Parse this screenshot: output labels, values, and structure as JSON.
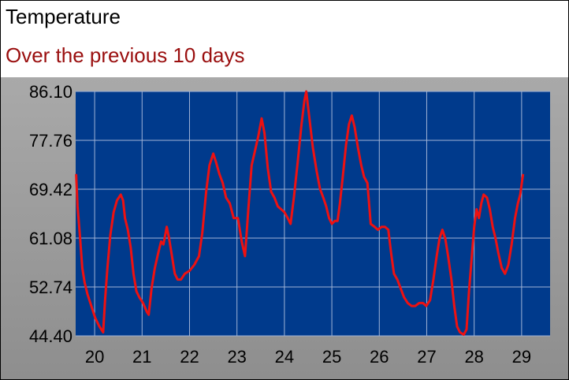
{
  "header": {
    "title": "Temperature",
    "subtitle": "Over the previous 10 days"
  },
  "colors": {
    "plot_background": "#003a8c",
    "grid": "#9fb3d6",
    "line": "#ee1111",
    "subtitle": "#9a0f0f",
    "panel": "#9a9a9a"
  },
  "chart_data": {
    "type": "line",
    "title": "Temperature",
    "subtitle": "Over the previous 10 days",
    "xlabel": "",
    "ylabel": "",
    "grid": true,
    "xlim": [
      19.6,
      29.6
    ],
    "ylim": [
      44.4,
      86.1
    ],
    "x_ticks": [
      20,
      21,
      22,
      23,
      24,
      25,
      26,
      27,
      28,
      29
    ],
    "x_tick_labels": [
      "20",
      "21",
      "22",
      "23",
      "24",
      "25",
      "26",
      "27",
      "28",
      "29"
    ],
    "y_ticks": [
      44.4,
      52.74,
      61.08,
      69.42,
      77.76,
      86.1
    ],
    "y_tick_labels": [
      "44.40",
      "52.74",
      "61.08",
      "69.42",
      "77.76",
      "86.10"
    ],
    "series": [
      {
        "values": [
          [
            19.61,
            72.0
          ],
          [
            19.64,
            66.5
          ],
          [
            19.69,
            61.5
          ],
          [
            19.74,
            56.0
          ],
          [
            19.79,
            53.5
          ],
          [
            19.85,
            51.5
          ],
          [
            19.93,
            49.5
          ],
          [
            20.01,
            47.5
          ],
          [
            20.1,
            46.0
          ],
          [
            20.18,
            45.0
          ],
          [
            20.22,
            50.5
          ],
          [
            20.27,
            56.0
          ],
          [
            20.33,
            61.5
          ],
          [
            20.4,
            65.5
          ],
          [
            20.47,
            67.5
          ],
          [
            20.55,
            68.5
          ],
          [
            20.6,
            67.5
          ],
          [
            20.64,
            64.5
          ],
          [
            20.7,
            62.5
          ],
          [
            20.76,
            59.5
          ],
          [
            20.82,
            55.0
          ],
          [
            20.88,
            52.0
          ],
          [
            20.94,
            51.0
          ],
          [
            21.02,
            50.0
          ],
          [
            21.1,
            48.5
          ],
          [
            21.14,
            48.0
          ],
          [
            21.2,
            52.5
          ],
          [
            21.27,
            56.0
          ],
          [
            21.34,
            58.5
          ],
          [
            21.4,
            60.5
          ],
          [
            21.45,
            60.0
          ],
          [
            21.52,
            63.0
          ],
          [
            21.57,
            61.0
          ],
          [
            21.63,
            58.0
          ],
          [
            21.69,
            55.0
          ],
          [
            21.75,
            54.0
          ],
          [
            21.82,
            54.0
          ],
          [
            21.9,
            55.0
          ],
          [
            22.0,
            55.5
          ],
          [
            22.1,
            56.5
          ],
          [
            22.2,
            58.0
          ],
          [
            22.27,
            62.0
          ],
          [
            22.35,
            69.0
          ],
          [
            22.42,
            73.5
          ],
          [
            22.5,
            75.5
          ],
          [
            22.56,
            74.0
          ],
          [
            22.63,
            72.0
          ],
          [
            22.7,
            70.5
          ],
          [
            22.77,
            68.0
          ],
          [
            22.85,
            67.0
          ],
          [
            22.93,
            64.5
          ],
          [
            23.02,
            64.5
          ],
          [
            23.1,
            60.5
          ],
          [
            23.17,
            58.0
          ],
          [
            23.24,
            66.0
          ],
          [
            23.31,
            73.5
          ],
          [
            23.38,
            76.0
          ],
          [
            23.45,
            78.5
          ],
          [
            23.52,
            81.5
          ],
          [
            23.58,
            79.0
          ],
          [
            23.65,
            73.0
          ],
          [
            23.72,
            69.0
          ],
          [
            23.79,
            68.0
          ],
          [
            23.86,
            66.5
          ],
          [
            23.93,
            66.0
          ],
          [
            24.0,
            65.5
          ],
          [
            24.07,
            64.5
          ],
          [
            24.13,
            63.5
          ],
          [
            24.2,
            68.0
          ],
          [
            24.28,
            74.0
          ],
          [
            24.36,
            80.5
          ],
          [
            24.42,
            84.5
          ],
          [
            24.46,
            86.1
          ],
          [
            24.52,
            82.0
          ],
          [
            24.6,
            76.5
          ],
          [
            24.68,
            72.5
          ],
          [
            24.75,
            69.5
          ],
          [
            24.82,
            68.0
          ],
          [
            24.88,
            66.5
          ],
          [
            24.94,
            64.5
          ],
          [
            25.0,
            63.5
          ],
          [
            25.06,
            64.0
          ],
          [
            25.12,
            64.0
          ],
          [
            25.17,
            67.0
          ],
          [
            25.23,
            71.5
          ],
          [
            25.3,
            77.0
          ],
          [
            25.36,
            80.5
          ],
          [
            25.42,
            82.0
          ],
          [
            25.48,
            80.0
          ],
          [
            25.55,
            76.5
          ],
          [
            25.62,
            73.5
          ],
          [
            25.68,
            71.5
          ],
          [
            25.75,
            70.5
          ],
          [
            25.82,
            63.5
          ],
          [
            25.9,
            63.0
          ],
          [
            25.97,
            62.5
          ],
          [
            26.05,
            63.0
          ],
          [
            26.12,
            63.0
          ],
          [
            26.19,
            62.5
          ],
          [
            26.25,
            58.5
          ],
          [
            26.31,
            55.0
          ],
          [
            26.38,
            54.0
          ],
          [
            26.45,
            52.5
          ],
          [
            26.52,
            51.0
          ],
          [
            26.6,
            50.0
          ],
          [
            26.68,
            49.5
          ],
          [
            26.76,
            49.5
          ],
          [
            26.84,
            50.0
          ],
          [
            26.92,
            50.0
          ],
          [
            26.99,
            49.5
          ],
          [
            27.07,
            50.5
          ],
          [
            27.14,
            54.0
          ],
          [
            27.21,
            58.0
          ],
          [
            27.27,
            61.0
          ],
          [
            27.33,
            62.5
          ],
          [
            27.39,
            61.0
          ],
          [
            27.45,
            58.0
          ],
          [
            27.52,
            54.0
          ],
          [
            27.58,
            49.5
          ],
          [
            27.64,
            46.0
          ],
          [
            27.7,
            45.0
          ],
          [
            27.78,
            44.6
          ],
          [
            27.84,
            45.5
          ],
          [
            27.89,
            52.0
          ],
          [
            27.95,
            58.0
          ],
          [
            28.0,
            63.0
          ],
          [
            28.05,
            66.0
          ],
          [
            28.1,
            64.5
          ],
          [
            28.15,
            67.0
          ],
          [
            28.2,
            68.5
          ],
          [
            28.27,
            68.0
          ],
          [
            28.33,
            66.0
          ],
          [
            28.39,
            63.0
          ],
          [
            28.45,
            61.0
          ],
          [
            28.51,
            58.5
          ],
          [
            28.58,
            56.0
          ],
          [
            28.65,
            55.0
          ],
          [
            28.72,
            56.5
          ],
          [
            28.79,
            60.0
          ],
          [
            28.86,
            64.5
          ],
          [
            28.92,
            67.0
          ],
          [
            28.97,
            68.5
          ],
          [
            29.03,
            72.0
          ]
        ]
      }
    ]
  }
}
